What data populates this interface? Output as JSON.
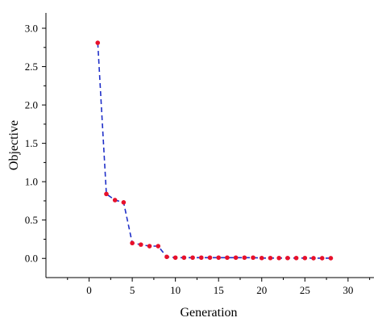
{
  "chart_data": {
    "type": "line",
    "title": "",
    "xlabel": "Generation",
    "ylabel": "Objective",
    "xlim": [
      -5,
      33
    ],
    "ylim": [
      -0.25,
      3.2
    ],
    "xticks": [
      0,
      5,
      10,
      15,
      20,
      25,
      30
    ],
    "xtick_labels": [
      "0",
      "5",
      "10",
      "15",
      "20",
      "25",
      "30"
    ],
    "yticks": [
      0.0,
      0.5,
      1.0,
      1.5,
      2.0,
      2.5,
      3.0
    ],
    "ytick_labels": [
      "0.0",
      "0.5",
      "1.0",
      "1.5",
      "2.0",
      "2.5",
      "3.0"
    ],
    "grid": false,
    "legend": "none",
    "series": [
      {
        "line_color": "#1f2fc8",
        "line_style": "dashed",
        "marker_color": "#e8102a",
        "x": [
          1,
          2,
          3,
          4,
          5,
          6,
          7,
          8,
          9,
          10,
          11,
          12,
          13,
          14,
          15,
          16,
          17,
          18,
          19,
          20,
          21,
          22,
          23,
          24,
          25,
          26,
          27,
          28
        ],
        "y": [
          2.81,
          0.84,
          0.76,
          0.73,
          0.2,
          0.18,
          0.16,
          0.16,
          0.02,
          0.01,
          0.01,
          0.01,
          0.01,
          0.01,
          0.01,
          0.01,
          0.01,
          0.01,
          0.01,
          0.005,
          0.005,
          0.005,
          0.005,
          0.005,
          0.005,
          0.003,
          0.003,
          0.003
        ]
      }
    ]
  }
}
